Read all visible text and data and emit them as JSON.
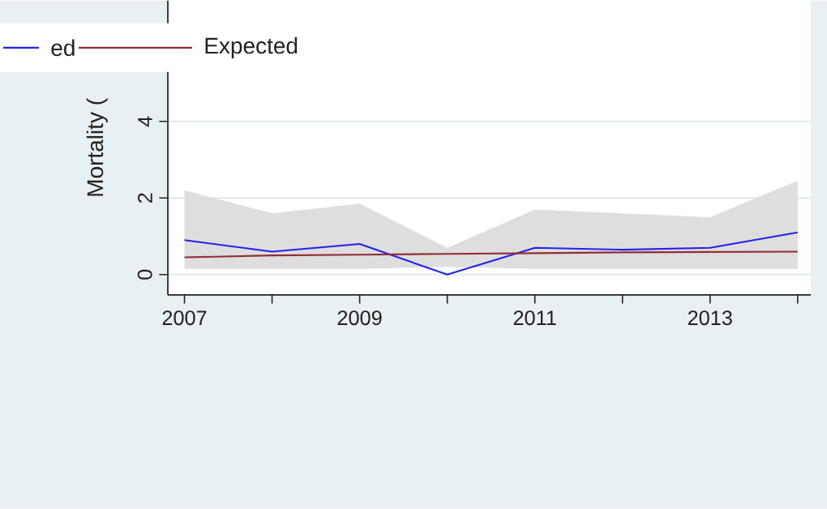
{
  "chart_data": {
    "type": "line",
    "ylabel": "Mortality (",
    "x": [
      2007,
      2008,
      2009,
      2010,
      2011,
      2012,
      2013,
      2014
    ],
    "xlim": [
      2006.81,
      2014.15
    ],
    "ylim": [
      -0.53,
      7.15
    ],
    "xticks": [
      2007,
      {
        "value": 2008,
        "label": null
      },
      2009,
      {
        "value": 2010,
        "label": null
      },
      2011,
      {
        "value": 2012,
        "label": null
      },
      2013,
      {
        "value": 2014,
        "label": null
      }
    ],
    "yticks": [
      0,
      2,
      4
    ],
    "grid": "y",
    "legend": "top left",
    "series": [
      {
        "name": "ed",
        "color": "#2222f0",
        "values": [
          0.9,
          0.6,
          0.8,
          0.0,
          0.7,
          0.65,
          0.7,
          1.1
        ]
      },
      {
        "name": "Expected",
        "color": "#8f2f36",
        "values": [
          0.45,
          0.5,
          0.52,
          0.54,
          0.56,
          0.58,
          0.59,
          0.6
        ],
        "lower": [
          0.15,
          0.15,
          0.15,
          0.2,
          0.15,
          0.15,
          0.15,
          0.15
        ],
        "upper": [
          2.2,
          1.6,
          1.85,
          0.7,
          1.7,
          1.6,
          1.5,
          2.45
        ]
      }
    ]
  }
}
